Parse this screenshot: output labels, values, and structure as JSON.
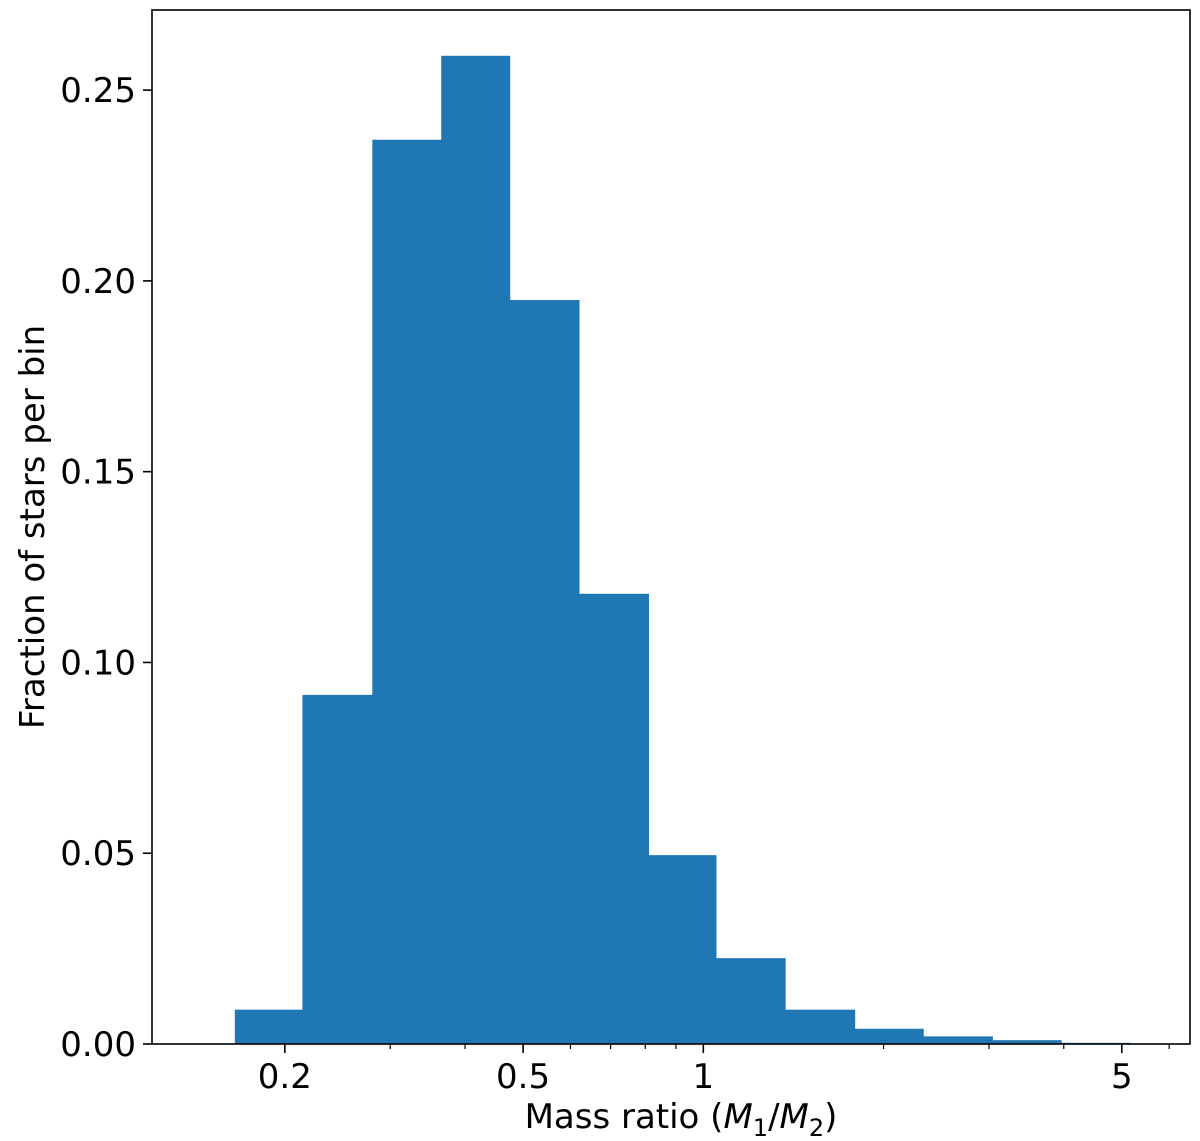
{
  "chart_data": {
    "type": "bar",
    "title": "",
    "xlabel": "Mass ratio (M₁/M₂)",
    "xlabel_parts": {
      "prefix": "Mass ratio (",
      "m1": "M",
      "sub1": "1",
      "slash": "/",
      "m2": "M",
      "sub2": "2",
      "suffix": ")"
    },
    "ylabel": "Fraction of stars per bin",
    "x_scale": "log",
    "xlim": [
      0.12,
      6.5
    ],
    "ylim": [
      0,
      0.271
    ],
    "x_ticks": [
      {
        "value": 0.2,
        "label": "0.2"
      },
      {
        "value": 0.5,
        "label": "0.5"
      },
      {
        "value": 1,
        "label": "1"
      },
      {
        "value": 5,
        "label": "5"
      }
    ],
    "y_ticks": [
      {
        "value": 0.0,
        "label": "0.00"
      },
      {
        "value": 0.05,
        "label": "0.05"
      },
      {
        "value": 0.1,
        "label": "0.10"
      },
      {
        "value": 0.15,
        "label": "0.15"
      },
      {
        "value": 0.2,
        "label": "0.20"
      },
      {
        "value": 0.25,
        "label": "0.25"
      }
    ],
    "bin_edges": [
      0.165,
      0.214,
      0.28,
      0.365,
      0.475,
      0.62,
      0.81,
      1.05,
      1.37,
      1.79,
      2.33,
      3.04,
      3.96,
      5.16
    ],
    "values": [
      0.009,
      0.0915,
      0.237,
      0.259,
      0.195,
      0.118,
      0.0495,
      0.0225,
      0.009,
      0.004,
      0.002,
      0.001,
      0.0003
    ],
    "grid": false,
    "color": "#1f77b4"
  }
}
